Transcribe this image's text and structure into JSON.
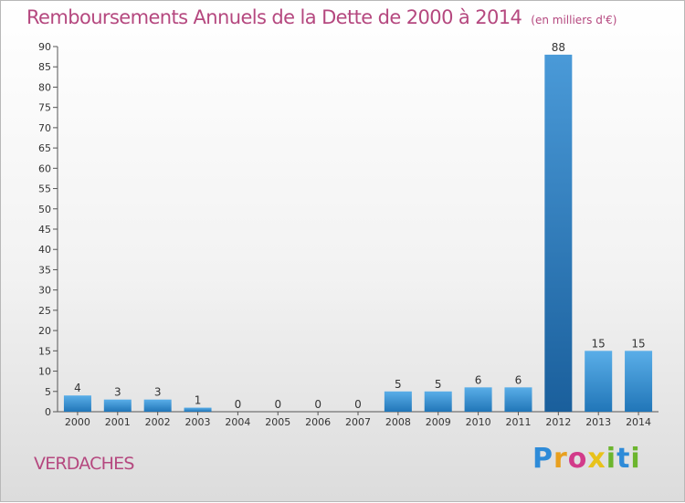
{
  "header": {
    "title": "Remboursements Annuels de la Dette de 2000 à 2014",
    "unit": "(en milliers d'€)"
  },
  "footer": {
    "commune": "VERDACHES",
    "logo": {
      "P": "P",
      "r": "r",
      "o": "o",
      "x": "x",
      "i": "i",
      "t": "t",
      "i2": "i"
    }
  },
  "colors": {
    "title": "#b5487f",
    "bar_light": "#5aaee8",
    "bar_dark": "#2176b8",
    "bar_highlight_light": "#4a9ad8",
    "bar_highlight_dark": "#1a5f9c"
  },
  "chart_data": {
    "type": "bar",
    "title": "Remboursements Annuels de la Dette de 2000 à 2014",
    "subtitle": "(en milliers d'€)",
    "categories": [
      "2000",
      "2001",
      "2002",
      "2003",
      "2004",
      "2005",
      "2006",
      "2007",
      "2008",
      "2009",
      "2010",
      "2011",
      "2012",
      "2013",
      "2014"
    ],
    "values": [
      4,
      3,
      3,
      1,
      0,
      0,
      0,
      0,
      5,
      5,
      6,
      6,
      88,
      15,
      15
    ],
    "highlight_index": 12,
    "ylim": [
      0,
      90
    ],
    "yticks": [
      0,
      5,
      10,
      15,
      20,
      25,
      30,
      35,
      40,
      45,
      50,
      55,
      60,
      65,
      70,
      75,
      80,
      85,
      90
    ],
    "grid": false,
    "data_labels": true
  }
}
